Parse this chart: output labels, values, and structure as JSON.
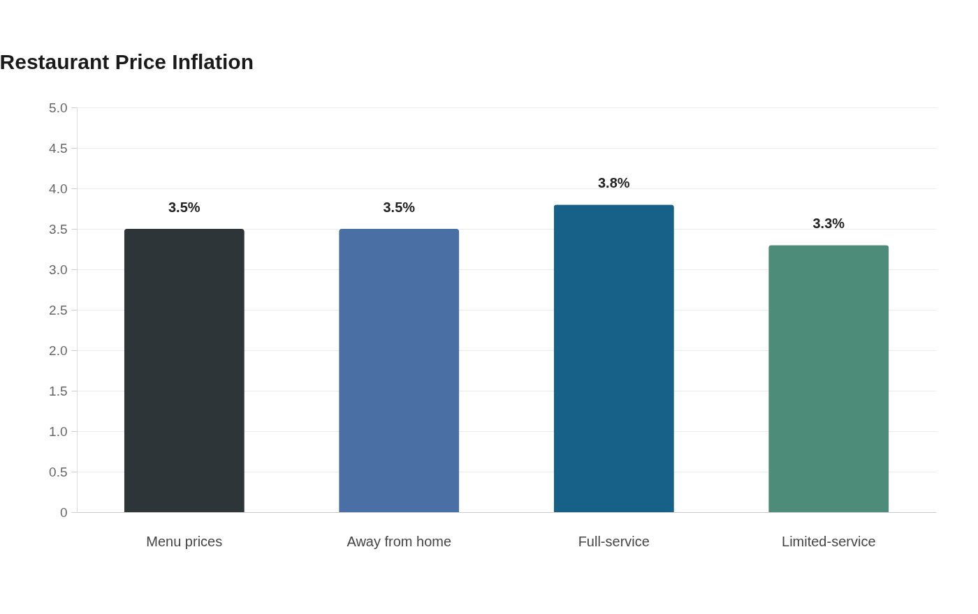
{
  "chart_data": {
    "type": "bar",
    "title": "Restaurant Price Inflation",
    "categories": [
      "Menu prices",
      "Away from home",
      "Full-service",
      "Limited-service"
    ],
    "values": [
      3.5,
      3.5,
      3.8,
      3.3
    ],
    "colors": [
      "#2e3538",
      "#4a6fa5",
      "#176087",
      "#4e8c7a"
    ],
    "value_labels": [
      "3.5%",
      "3.5%",
      "3.8%",
      "3.3%"
    ],
    "ylim": [
      0,
      5.0
    ],
    "yticks": [
      0,
      {
        "value": 0.5,
        "label": "0.5"
      },
      {
        "value": 1,
        "label": "1.0"
      },
      {
        "value": 1.5,
        "label": "1.5"
      },
      {
        "value": 2,
        "label": "2.0"
      },
      {
        "value": 2.5,
        "label": "2.5"
      },
      {
        "value": 3,
        "label": "3.0"
      },
      {
        "value": 3.5,
        "label": "3.5"
      },
      {
        "value": 4,
        "label": "4.0"
      },
      {
        "value": 4.5,
        "label": "4.5"
      },
      {
        "value": 5,
        "label": "5.0"
      }
    ],
    "grid": "y",
    "legend": false
  }
}
